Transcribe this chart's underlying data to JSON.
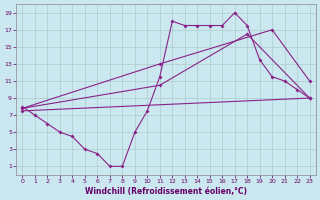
{
  "xlabel": "Windchill (Refroidissement éolien,°C)",
  "bg_color": "#cbe8f0",
  "line_color": "#882288",
  "grid_color": "#aacccc",
  "xlim": [
    -0.5,
    23.5
  ],
  "ylim": [
    0,
    20
  ],
  "xticks": [
    0,
    1,
    2,
    3,
    4,
    5,
    6,
    7,
    8,
    9,
    10,
    11,
    12,
    13,
    14,
    15,
    16,
    17,
    18,
    19,
    20,
    21,
    22,
    23
  ],
  "yticks": [
    1,
    3,
    5,
    7,
    9,
    11,
    13,
    15,
    17,
    19
  ],
  "series1": {
    "x": [
      0,
      1,
      2,
      3,
      4,
      5,
      6,
      7,
      8,
      9,
      10,
      11,
      12,
      13,
      14,
      15,
      16,
      17,
      18,
      19,
      20,
      21,
      22,
      23
    ],
    "y": [
      8,
      7,
      6,
      5,
      4.5,
      3,
      2.5,
      1,
      1,
      5,
      7.5,
      11.5,
      18,
      17.5,
      17.5,
      17.5,
      17.5,
      19,
      17.5,
      13.5,
      11.5,
      11,
      10,
      9
    ]
  },
  "series2": {
    "x": [
      0,
      23
    ],
    "y": [
      7.5,
      9
    ]
  },
  "series3": {
    "x": [
      0,
      11,
      18,
      23
    ],
    "y": [
      7.8,
      10.5,
      16.5,
      9
    ]
  },
  "series4": {
    "x": [
      0,
      11,
      20,
      23
    ],
    "y": [
      7.8,
      13,
      17,
      11
    ]
  }
}
